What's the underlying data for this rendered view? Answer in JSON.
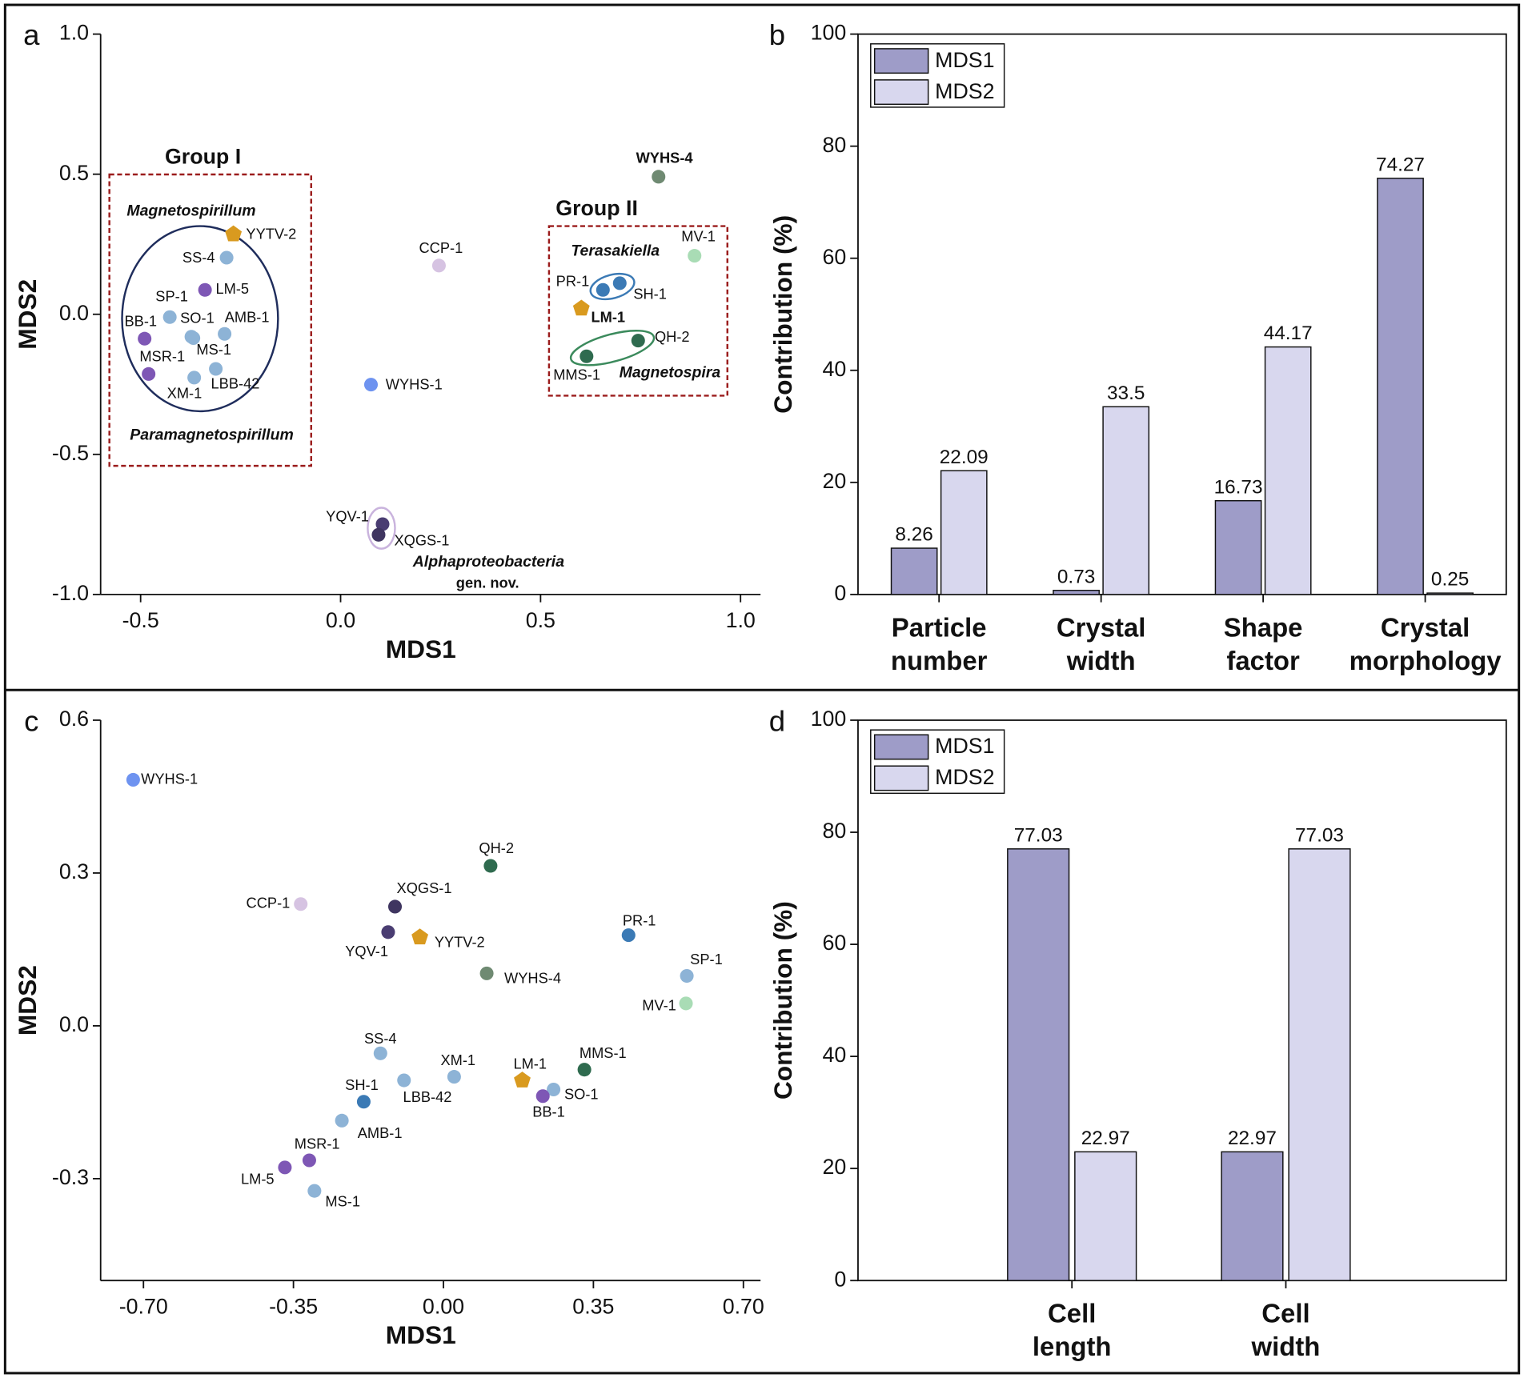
{
  "chart_data": [
    {
      "type": "scatter",
      "panel_label": "a",
      "x_label": "MDS1",
      "y_label": "MDS2",
      "xlim": [
        -0.6,
        1.05
      ],
      "ylim": [
        -1,
        1
      ],
      "xticks": [
        -0.5,
        {
          "value": 0,
          "label": "0.0"
        },
        0.5,
        {
          "value": 1,
          "label": "1.0"
        }
      ],
      "yticks": [
        {
          "value": 1,
          "label": "1.0"
        },
        0.5,
        {
          "value": 0,
          "label": "0.0"
        },
        -0.5,
        {
          "value": -1,
          "label": "-1.0"
        }
      ],
      "point_labels": [
        "WYHS-4",
        "YYTV-2",
        "SS-4",
        "LM-5",
        "SP-1",
        "SO-1",
        "AMB-1",
        "BB-1",
        "MS-1",
        "MSR-1",
        "LBB-42",
        "XM-1",
        "CCP-1",
        "WYHS-1",
        "MV-1",
        "PR-1",
        "SH-1",
        "LM-1",
        "QH-2",
        "MMS-1",
        "YQV-1",
        "XQGS-1"
      ],
      "x": [
        0.795,
        -0.268,
        -0.285,
        -0.339,
        -0.427,
        -0.373,
        -0.29,
        -0.49,
        -0.368,
        -0.48,
        -0.312,
        -0.366,
        0.246,
        0.076,
        0.885,
        0.656,
        0.698,
        0.602,
        0.744,
        0.615,
        0.105,
        0.095
      ],
      "values": [
        0.491,
        0.286,
        0.202,
        0.087,
        -0.01,
        -0.08,
        -0.07,
        -0.087,
        -0.085,
        -0.213,
        -0.195,
        -0.226,
        0.174,
        -0.251,
        0.209,
        0.087,
        0.111,
        0.021,
        -0.094,
        -0.15,
        -0.749,
        -0.787
      ],
      "colors": [
        "#6f8a72",
        "#d99a1f",
        "#8db3d6",
        "#7e57b5",
        "#8db3d6",
        "#8db3d6",
        "#8db3d6",
        "#7e57b5",
        "#8db3d6",
        "#7e57b5",
        "#8db3d6",
        "#8db3d6",
        "#d6c3e2",
        "#6e93f0",
        "#a9dcb5",
        "#3b7ab5",
        "#3b7ab5",
        "#d99a1f",
        "#2f6b4f",
        "#2f6b4f",
        "#4a3d72",
        "#3f3560"
      ],
      "markers": [
        "circle",
        "pentagon",
        "circle",
        "circle",
        "circle",
        "circle",
        "circle",
        "circle",
        "circle",
        "circle",
        "circle",
        "circle",
        "circle",
        "circle",
        "circle",
        "circle",
        "circle",
        "pentagon",
        "circle",
        "circle",
        "circle",
        "circle"
      ],
      "annotations": [
        {
          "text": "Group I",
          "color": "#111111"
        },
        {
          "text": "Magnetospirillum",
          "color": "#8db3d6"
        },
        {
          "text": "Paramagnetospirillum",
          "color": "#8a6bbf"
        },
        {
          "text": "Group II",
          "color": "#111111"
        },
        {
          "text": "Terasakiella",
          "color": "#3b7ab5"
        },
        {
          "text": "Magnetospira",
          "color": "#2f6b4f"
        },
        {
          "text": "Alphaproteobacteria",
          "color": "#4a3d72"
        },
        {
          "text": "gen. nov.",
          "color": "#4a3d72"
        }
      ]
    },
    {
      "type": "bar",
      "panel_label": "b",
      "y_label": "Contribution (%)",
      "categories": [
        "Particle number",
        "Crystal width",
        "Shape factor",
        "Crystal morphology"
      ],
      "series": [
        {
          "name": "MDS1",
          "color": "#9e9cc8",
          "values": [
            8.26,
            0.73,
            16.73,
            74.27
          ]
        },
        {
          "name": "MDS2",
          "color": "#d8d7ee",
          "values": [
            22.09,
            33.5,
            44.17,
            0.25
          ]
        }
      ],
      "ylim": [
        0,
        100
      ],
      "yticks": [
        0,
        20,
        40,
        60,
        80,
        100
      ],
      "legend": "upper left"
    },
    {
      "type": "scatter",
      "panel_label": "c",
      "x_label": "MDS1",
      "y_label": "MDS2",
      "xlim": [
        -0.8,
        0.74
      ],
      "ylim": [
        -0.5,
        0.6
      ],
      "xticks": [
        {
          "value": -0.7,
          "label": "-0.70"
        },
        -0.35,
        {
          "value": 0,
          "label": "0.00"
        },
        0.35,
        {
          "value": 0.7,
          "label": "0.70"
        }
      ],
      "yticks": [
        0.6,
        0.3,
        {
          "value": 0,
          "label": "0.0"
        },
        -0.3
      ],
      "point_labels": [
        "WYHS-4",
        "YYTV-2",
        "SS-4",
        "LM-5",
        "SP-1",
        "SO-1",
        "AMB-1",
        "BB-1",
        "MS-1",
        "MSR-1",
        "LBB-42",
        "XM-1",
        "CCP-1",
        "WYHS-1",
        "MV-1",
        "PR-1",
        "SH-1",
        "LM-1",
        "QH-2",
        "MMS-1",
        "YQV-1",
        "XQGS-1"
      ],
      "x": [
        0.101,
        -0.055,
        -0.147,
        -0.37,
        0.568,
        0.257,
        -0.237,
        0.232,
        -0.301,
        -0.313,
        -0.092,
        0.025,
        -0.333,
        -0.724,
        0.566,
        0.432,
        -0.186,
        0.184,
        0.11,
        0.329,
        -0.129,
        -0.113
      ],
      "values": [
        0.103,
        0.174,
        -0.054,
        -0.278,
        0.098,
        -0.125,
        -0.186,
        -0.138,
        -0.324,
        -0.264,
        -0.107,
        -0.1,
        0.239,
        0.483,
        0.044,
        0.178,
        -0.149,
        -0.107,
        0.314,
        -0.086,
        0.184,
        0.234
      ],
      "colors": [
        "#6f8a72",
        "#d99a1f",
        "#8db3d6",
        "#7e57b5",
        "#8db3d6",
        "#8db3d6",
        "#8db3d6",
        "#7e57b5",
        "#8db3d6",
        "#7e57b5",
        "#8db3d6",
        "#8db3d6",
        "#d6c3e2",
        "#6e93f0",
        "#a9dcb5",
        "#3b7ab5",
        "#3b7ab5",
        "#d99a1f",
        "#2f6b4f",
        "#2f6b4f",
        "#4a3d72",
        "#3f3560"
      ],
      "markers": [
        "circle",
        "pentagon",
        "circle",
        "circle",
        "circle",
        "circle",
        "circle",
        "circle",
        "circle",
        "circle",
        "circle",
        "circle",
        "circle",
        "circle",
        "circle",
        "circle",
        "circle",
        "pentagon",
        "circle",
        "circle",
        "circle",
        "circle"
      ]
    },
    {
      "type": "bar",
      "panel_label": "d",
      "y_label": "Contribution (%)",
      "categories": [
        "Cell length",
        "Cell width"
      ],
      "series": [
        {
          "name": "MDS1",
          "color": "#9e9cc8",
          "values": [
            77.03,
            22.97
          ]
        },
        {
          "name": "MDS2",
          "color": "#d8d7ee",
          "values": [
            22.97,
            77.03
          ]
        }
      ],
      "ylim": [
        0,
        100
      ],
      "yticks": [
        0,
        20,
        40,
        60,
        80,
        100
      ],
      "legend": "upper left"
    }
  ]
}
